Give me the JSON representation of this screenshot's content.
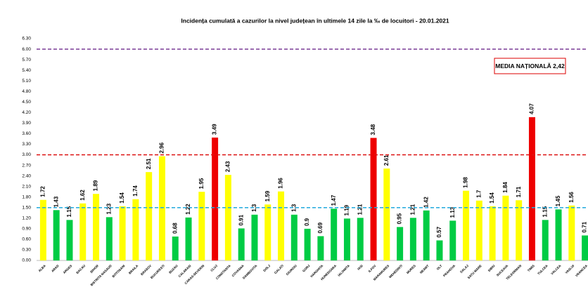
{
  "chart_data": {
    "type": "bar",
    "title": "Incidența cumulată a cazurilor la nivel județean în ultimele 14 zile la ‰ de locuitori - 20.01.2021",
    "annotation": "MEDIA NAȚIONALĂ 2,42",
    "categories": [
      "ALBA",
      "ARAD",
      "ARGES",
      "BACAU",
      "BIHOR",
      "BISTRITA NASAUD",
      "BOTOSANI",
      "BRAILA",
      "BRASOV",
      "BUCURESTI",
      "BUZAU",
      "CALARASI",
      "CARAS-SEVERIN",
      "CLUJ",
      "CONSTANTA",
      "COVASNA",
      "DAMBOVITA",
      "DOLJ",
      "GALATI",
      "GIURGIU",
      "GORJ",
      "HARGHITA",
      "HUNEDOARA",
      "IALOMITA",
      "IASI",
      "ILFOV",
      "MARAMURES",
      "MEHEDINTI",
      "MURES",
      "NEAMT",
      "OLT",
      "PRAHOVA",
      "SALAJ",
      "SATU MARE",
      "SIBIU",
      "SUCEAVA",
      "TELEORMAN",
      "TIMIS",
      "TULCEA",
      "VALCEA",
      "VASLUI",
      "VRANCEA"
    ],
    "values": [
      1.72,
      1.43,
      1.15,
      1.62,
      1.89,
      1.23,
      1.54,
      1.74,
      2.51,
      2.96,
      0.68,
      1.22,
      1.95,
      3.49,
      2.43,
      0.91,
      1.3,
      1.59,
      1.96,
      1.3,
      0.9,
      0.69,
      1.47,
      1.19,
      1.21,
      3.48,
      2.61,
      0.95,
      1.21,
      1.42,
      0.57,
      1.13,
      1.98,
      1.7,
      1.54,
      1.84,
      1.71,
      4.07,
      1.15,
      1.45,
      1.56,
      0.71
    ],
    "colors": [
      "#ffff00",
      "#00cc44",
      "#00cc44",
      "#ffff00",
      "#ffff00",
      "#00cc44",
      "#ffff00",
      "#ffff00",
      "#ffff00",
      "#ffff00",
      "#00cc44",
      "#00cc44",
      "#ffff00",
      "#ee0000",
      "#ffff00",
      "#00cc44",
      "#00cc44",
      "#ffff00",
      "#ffff00",
      "#00cc44",
      "#00cc44",
      "#00cc44",
      "#00cc44",
      "#00cc44",
      "#00cc44",
      "#ee0000",
      "#ffff00",
      "#00cc44",
      "#00cc44",
      "#00cc44",
      "#00cc44",
      "#00cc44",
      "#ffff00",
      "#ffff00",
      "#ffff00",
      "#ffff00",
      "#ffff00",
      "#ee0000",
      "#00cc44",
      "#00cc44",
      "#ffff00",
      "#00cc44"
    ],
    "ylim": [
      0,
      6.3
    ],
    "yticks": [
      {
        "value": 0,
        "label": "0.00"
      },
      {
        "value": 0.3,
        "label": "0.30"
      },
      {
        "value": 0.6,
        "label": "0.60"
      },
      {
        "value": 0.9,
        "label": "0.90"
      },
      {
        "value": 1.2,
        "label": "1.20"
      },
      {
        "value": 1.5,
        "label": "1.50"
      },
      {
        "value": 1.8,
        "label": "1.80"
      },
      {
        "value": 2.1,
        "label": "2.10"
      },
      {
        "value": 2.4,
        "label": "2.40"
      },
      {
        "value": 2.7,
        "label": "2.70"
      },
      {
        "value": 3,
        "label": "3.00"
      },
      {
        "value": 3.3,
        "label": "3.30"
      },
      {
        "value": 3.6,
        "label": "3.60"
      },
      {
        "value": 3.9,
        "label": "3.90"
      },
      {
        "value": 4.2,
        "label": "4.20"
      },
      {
        "value": 4.5,
        "label": "4.50"
      },
      {
        "value": 4.8,
        "label": "4.80"
      },
      {
        "value": 5.1,
        "label": "5.10"
      },
      {
        "value": 5.4,
        "label": "5.40"
      },
      {
        "value": 5.7,
        "label": "5.70"
      },
      {
        "value": 6,
        "label": "6.00"
      },
      {
        "value": 6.3,
        "label": "6.30"
      }
    ],
    "reference_lines": [
      {
        "value": 1.5,
        "color": "#22aadd"
      },
      {
        "value": 3,
        "color": "#dd1111"
      },
      {
        "value": 6,
        "color": "#7a3b96"
      }
    ],
    "grid": false
  }
}
